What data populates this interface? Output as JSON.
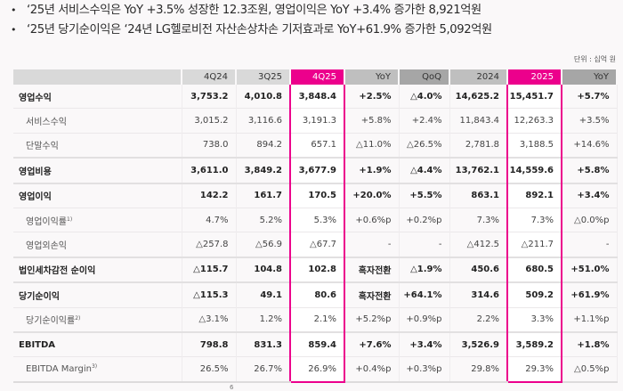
{
  "bullets": [
    "‘25년 서비스수익은 YoY +3.5% 성장한 12.3조원, 영업이익은 YoY +3.4% 증가한 8,921억원",
    "‘25년 당기순이익은 ‘24년 LG헬로비전 자산손상차손 기저효과로 YoY+61.9% 증가한 5,092억원"
  ],
  "bullet_marker": "•",
  "unit_label": "단위 : 십억 원",
  "highlight_color": "#ec008c",
  "columns": [
    "",
    "4Q24",
    "3Q25",
    "4Q25",
    "YoY",
    "QoQ",
    "2024",
    "2025",
    "YoY"
  ],
  "rows": [
    {
      "label": "영업수익",
      "note": "",
      "values": [
        "3,753.2",
        "4,010.8",
        "3,848.4",
        "+2.5%",
        "△4.0%",
        "14,625.2",
        "15,451.7",
        "+5.7%"
      ]
    },
    {
      "label": "서비스수익",
      "note": "",
      "values": [
        "3,015.2",
        "3,116.6",
        "3,191.3",
        "+5.8%",
        "+2.4%",
        "11,843.4",
        "12,263.3",
        "+3.5%"
      ]
    },
    {
      "label": "단말수익",
      "note": "",
      "values": [
        "738.0",
        "894.2",
        "657.1",
        "△11.0%",
        "△26.5%",
        "2,781.8",
        "3,188.5",
        "+14.6%"
      ]
    },
    {
      "label": "영업비용",
      "note": "",
      "values": [
        "3,611.0",
        "3,849.2",
        "3,677.9",
        "+1.9%",
        "△4.4%",
        "13,762.1",
        "14,559.6",
        "+5.8%"
      ]
    },
    {
      "label": "영업이익",
      "note": "",
      "values": [
        "142.2",
        "161.7",
        "170.5",
        "+20.0%",
        "+5.5%",
        "863.1",
        "892.1",
        "+3.4%"
      ]
    },
    {
      "label": "영업이익률",
      "note": "1)",
      "values": [
        "4.7%",
        "5.2%",
        "5.3%",
        "+0.6%p",
        "+0.2%p",
        "7.3%",
        "7.3%",
        "△0.0%p"
      ]
    },
    {
      "label": "영업외손익",
      "note": "",
      "values": [
        "△257.8",
        "△56.9",
        "△67.7",
        "-",
        "-",
        "△412.5",
        "△211.7",
        "-"
      ]
    },
    {
      "label": "법인세차감전 순이익",
      "note": "",
      "values": [
        "△115.7",
        "104.8",
        "102.8",
        "흑자전환",
        "△1.9%",
        "450.6",
        "680.5",
        "+51.0%"
      ]
    },
    {
      "label": "당기순이익",
      "note": "",
      "values": [
        "△115.3",
        "49.1",
        "80.6",
        "흑자전환",
        "+64.1%",
        "314.6",
        "509.2",
        "+61.9%"
      ]
    },
    {
      "label": "당기순이익률",
      "note": "2)",
      "values": [
        "△3.1%",
        "1.2%",
        "2.1%",
        "+5.2%p",
        "+0.9%p",
        "2.2%",
        "3.3%",
        "+1.1%p"
      ]
    },
    {
      "label": "EBITDA",
      "note": "",
      "values": [
        "798.8",
        "831.3",
        "859.4",
        "+7.6%",
        "+3.4%",
        "3,526.9",
        "3,589.2",
        "+1.8%"
      ]
    },
    {
      "label": "EBITDA Margin",
      "note": "3)",
      "values": [
        "26.5%",
        "26.7%",
        "26.9%",
        "+0.4%p",
        "+0.3%p",
        "29.8%",
        "29.3%",
        "△0.5%p"
      ]
    }
  ],
  "page_number": "6"
}
